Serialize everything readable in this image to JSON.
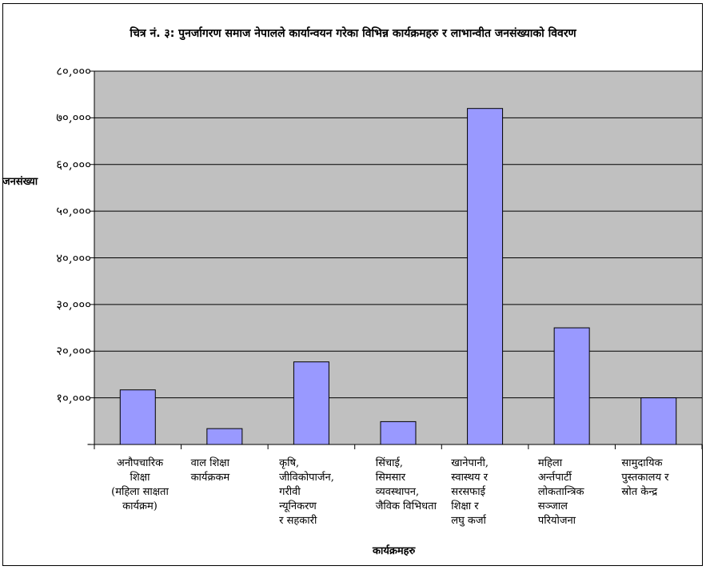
{
  "chart_data": {
    "type": "bar",
    "title": "चित्र नं. ३: पुनर्जागरण समाज नेपालले कार्यान्वयन गरेका विभिन्न कार्यक्रमहरु र लाभान्वीत जनसंख्याको विवरण",
    "xlabel": "कार्यक्रमहरु",
    "ylabel": "जनसंख्या",
    "ylim": [
      0,
      80000
    ],
    "grid": true,
    "legend": "none",
    "bar_color": "#9999ff",
    "plot_bg": "#c0c0c0",
    "ytick_labels": [
      "-",
      "१०,०००",
      "२०,०००",
      "३०,०००",
      "४०,०००",
      "५०,०००",
      "६०,०००",
      "७०,०००",
      "८०,०००"
    ],
    "yticks": [
      0,
      10000,
      20000,
      30000,
      40000,
      50000,
      60000,
      70000,
      80000
    ],
    "categories": [
      "अनौपचारिक\nशिक्षा\n(महिला साक्षता\nकार्यक्रम)",
      "वाल शिक्षा\nकार्यक्रकम",
      "कृषि,\nजीविकोपार्जन,\nगरीवी\nन्यूनिकरण\nर सहकारी",
      "सिंचाई,\nसिमसार\nव्यवस्थापन,\nजैविक विभिधता",
      "खानेपानी,\nस्वास्थय र\nसरसफाई\nशिक्षा र\nलघु कर्जा",
      "महिला\nअर्न्तपार्टी\nलोकतान्त्रिक\nसञ्जाल\nपरियोजना",
      "सामुदायिक\nपुस्तकालय र\nस्रोत केन्द्र"
    ],
    "values": [
      11700,
      3400,
      17700,
      4900,
      72000,
      25000,
      10000
    ]
  }
}
